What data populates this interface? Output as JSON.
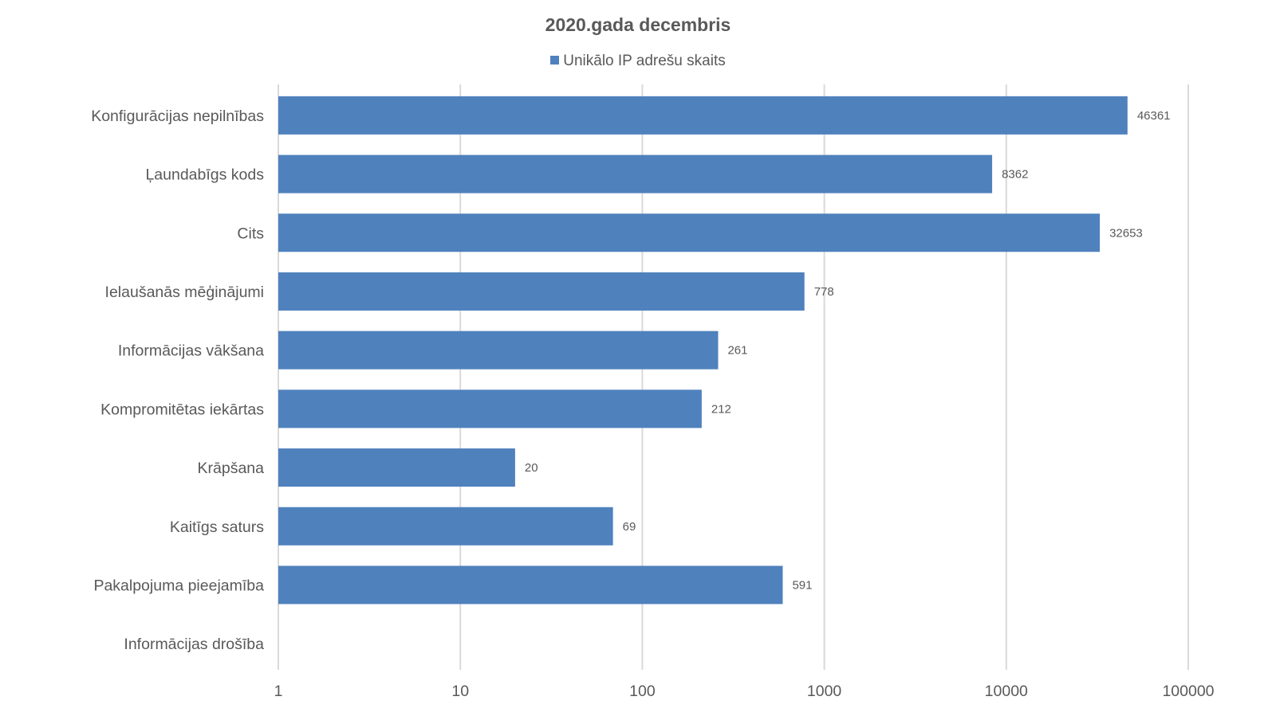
{
  "chart_data": {
    "type": "bar",
    "orientation": "horizontal",
    "title": "2020.gada  decembris",
    "legend": {
      "position": "top"
    },
    "x_scale": "log",
    "xlim": [
      1,
      100000
    ],
    "x_ticks": [
      "1",
      "10",
      "100",
      "1000",
      "10000",
      "100000"
    ],
    "grid": true,
    "categories": [
      "Konfigurācijas nepilnības",
      "Ļaundabīgs kods",
      "Cits",
      "Ielaušanās mēģinājumi",
      "Informācijas vākšana",
      "Kompromitētas iekārtas",
      "Krāpšana",
      "Kaitīgs saturs",
      "Pakalpojuma pieejamība",
      "Informācijas drošība"
    ],
    "series": [
      {
        "name": "Unikālo IP adrešu skaits",
        "color": "#4f81bd",
        "values": [
          46361,
          8362,
          32653,
          778,
          261,
          212,
          20,
          69,
          591,
          null
        ],
        "data_labels": [
          "46361",
          "8362",
          "32653",
          "778",
          "261",
          "212",
          "20",
          "69",
          "591",
          ""
        ]
      }
    ]
  }
}
